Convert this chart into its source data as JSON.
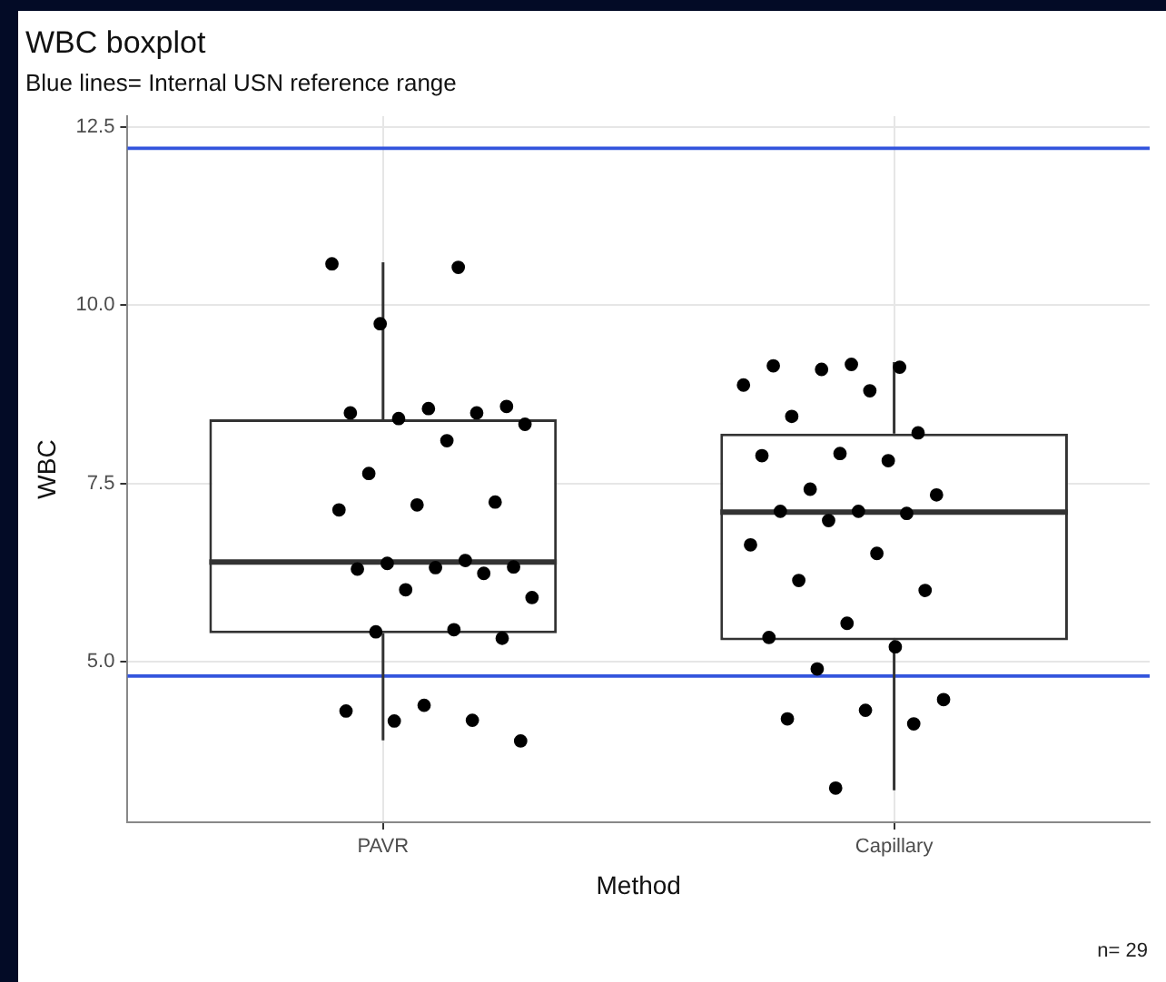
{
  "chart_data": {
    "type": "box",
    "title": "WBC boxplot",
    "subtitle": "Blue lines= Internal USN reference range",
    "xlabel": "Method",
    "ylabel": "WBC",
    "categories": [
      "PAVR",
      "Capillary"
    ],
    "boxes": [
      {
        "low": 3.9,
        "q1": 5.4,
        "median": 6.4,
        "q3": 8.4,
        "high": 10.6
      },
      {
        "low": 3.2,
        "q1": 5.3,
        "median": 7.1,
        "q3": 8.2,
        "high": 9.2
      }
    ],
    "series": [
      {
        "type": "scatter",
        "color": "#000000",
        "x": [
          "PAVR",
          "PAVR",
          "PAVR",
          "PAVR",
          "PAVR",
          "PAVR",
          "PAVR",
          "PAVR",
          "PAVR",
          "PAVR",
          "PAVR",
          "PAVR",
          "PAVR",
          "PAVR",
          "PAVR",
          "PAVR",
          "PAVR",
          "PAVR",
          "PAVR",
          "PAVR",
          "PAVR",
          "PAVR",
          "PAVR",
          "PAVR",
          "PAVR",
          "PAVR",
          "PAVR",
          "PAVR",
          "PAVR",
          "PAVR",
          "Capillary",
          "Capillary",
          "Capillary",
          "Capillary",
          "Capillary",
          "Capillary",
          "Capillary",
          "Capillary",
          "Capillary",
          "Capillary",
          "Capillary",
          "Capillary",
          "Capillary",
          "Capillary",
          "Capillary",
          "Capillary",
          "Capillary",
          "Capillary",
          "Capillary",
          "Capillary",
          "Capillary",
          "Capillary",
          "Capillary",
          "Capillary",
          "Capillary",
          "Capillary",
          "Capillary",
          "Capillary",
          "Capillary",
          "Capillary"
        ],
        "values": [
          10.58,
          10.53,
          9.74,
          8.58,
          8.55,
          8.49,
          8.49,
          8.41,
          8.33,
          8.1,
          7.64,
          7.24,
          7.2,
          7.13,
          6.42,
          6.38,
          6.33,
          6.32,
          6.3,
          6.24,
          6.01,
          5.9,
          5.45,
          5.42,
          5.33,
          4.39,
          4.31,
          4.18,
          4.17,
          3.89,
          9.17,
          9.15,
          9.13,
          9.1,
          8.88,
          8.8,
          8.44,
          8.21,
          7.92,
          7.89,
          7.82,
          7.42,
          7.34,
          7.11,
          7.11,
          7.08,
          6.98,
          6.64,
          6.52,
          6.14,
          6.0,
          5.54,
          5.34,
          5.21,
          4.9,
          4.47,
          4.32,
          4.2,
          4.13,
          3.23
        ]
      }
    ],
    "ylim": [
      2.75,
      12.65
    ],
    "yticks": [
      {
        "value": 5,
        "label": "5.0"
      },
      {
        "value": 7.5,
        "label": "7.5"
      },
      {
        "value": 10,
        "label": "10.0"
      },
      {
        "value": 12.5,
        "label": "12.5"
      }
    ],
    "ref_lines": [
      {
        "axis": "y",
        "value": 12.2,
        "color": "#3355dd"
      },
      {
        "axis": "y",
        "value": 4.8,
        "color": "#3355dd"
      }
    ],
    "annotations": [
      "n= 29"
    ],
    "grid": true,
    "legend": false,
    "marker": "circle"
  }
}
